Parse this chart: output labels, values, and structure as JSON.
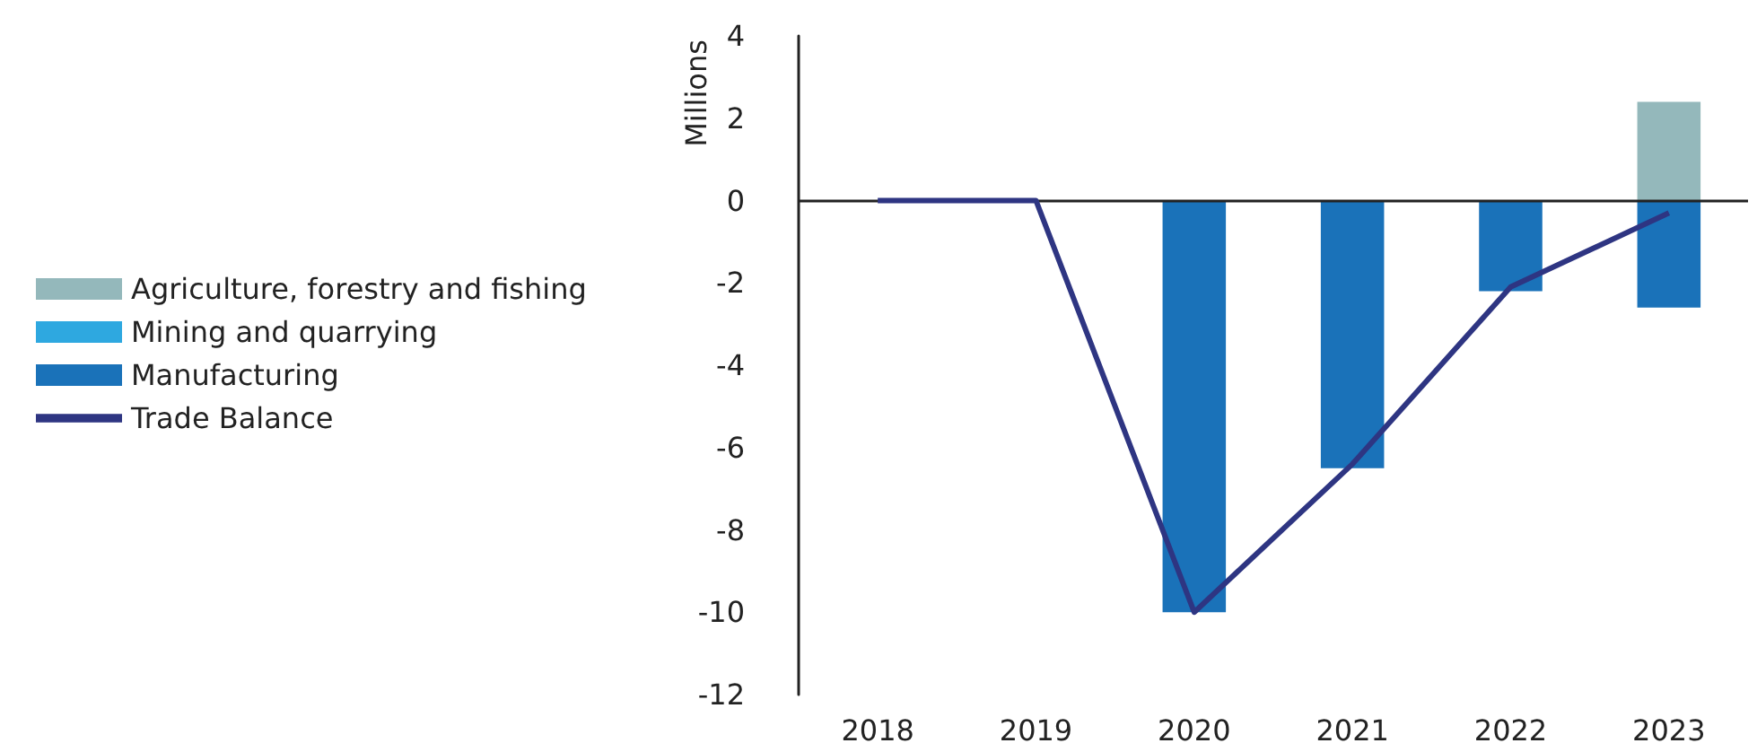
{
  "chart_data": {
    "type": "bar",
    "ylabel": "Millions",
    "categories": [
      "2018",
      "2019",
      "2020",
      "2021",
      "2022",
      "2023"
    ],
    "series": [
      {
        "name": "Agriculture, forestry and fishing",
        "color": "#94b8bb",
        "values": [
          null,
          null,
          null,
          null,
          null,
          2.4
        ]
      },
      {
        "name": "Mining and quarrying",
        "color": "#2ea8e0",
        "values": [
          null,
          null,
          null,
          null,
          null,
          null
        ]
      },
      {
        "name": "Manufacturing",
        "color": "#1a72b9",
        "values": [
          null,
          null,
          -10,
          -6.5,
          -2.2,
          -2.6
        ]
      },
      {
        "name": "Trade Balance",
        "type": "line",
        "color": "#2e3582",
        "values": [
          0,
          0,
          -10,
          -6.4,
          -2.1,
          -0.3
        ]
      }
    ],
    "ref_lines": [
      {
        "axis": "y",
        "value": 0,
        "color": "#222222"
      }
    ],
    "stacked": true,
    "ylim": [
      -12,
      4
    ],
    "yticks": [
      -12,
      -10,
      -8,
      -6,
      -4,
      -2,
      0,
      2,
      4
    ],
    "grid": false,
    "legend": "left",
    "marker": "none"
  }
}
